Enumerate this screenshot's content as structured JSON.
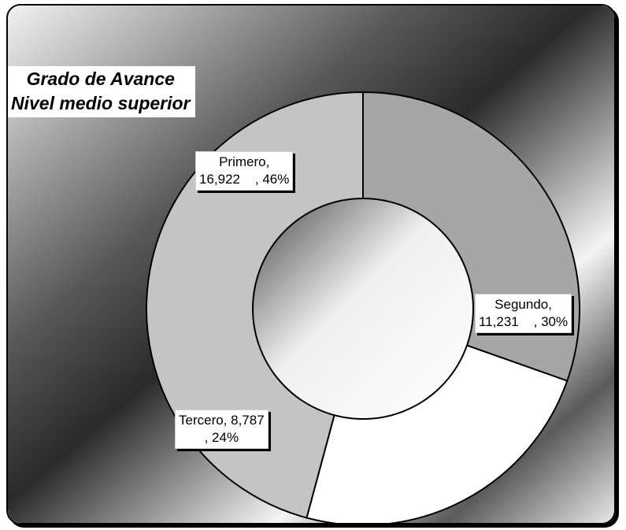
{
  "chart_data": {
    "type": "pie",
    "variant": "doughnut",
    "title": "Grado de Avance",
    "subtitle": "Nivel medio superior",
    "categories": [
      "Segundo",
      "Tercero",
      "Primero"
    ],
    "values": [
      11231,
      8787,
      16922
    ],
    "percents": [
      30,
      24,
      46
    ],
    "labels": [
      "Segundo,\n11,231    , 30%",
      "Tercero, 8,787\n, 24%",
      "Primero,\n16,922    , 46%"
    ],
    "colors": [
      "#a6a6a6",
      "#ffffff",
      "#c4c4c4"
    ],
    "legend": "none"
  }
}
